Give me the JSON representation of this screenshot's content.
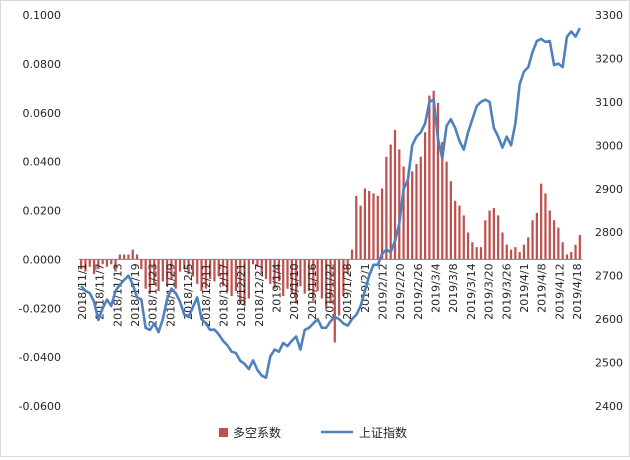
{
  "chart_data": {
    "type": "bar+line",
    "colors": {
      "bar": "#C0504D",
      "line": "#4F81BD",
      "zero": "#7f7f7f",
      "axis": "#bfbfbf"
    },
    "y_left": {
      "lim": [
        -0.06,
        0.1
      ],
      "ticks": [
        -0.06,
        -0.04,
        -0.02,
        0.0,
        0.02,
        0.04,
        0.06,
        0.08,
        0.1
      ],
      "tick_labels": [
        "-0.0600",
        "-0.0400",
        "-0.0200",
        "0.0000",
        "0.0200",
        "0.0400",
        "0.0600",
        "0.0800",
        "0.1000"
      ]
    },
    "y_right": {
      "lim": [
        2400,
        3300
      ],
      "ticks": [
        2400,
        2500,
        2600,
        2700,
        2800,
        2900,
        3000,
        3100,
        3200,
        3300
      ],
      "tick_labels": [
        "2400",
        "2500",
        "2600",
        "2700",
        "2800",
        "2900",
        "3000",
        "3100",
        "3200",
        "3300"
      ]
    },
    "x_tick_labels": [
      "2018/11/1",
      "2018/11/7",
      "2018/11/13",
      "2018/11/19",
      "2018/11/23",
      "2018/11/29",
      "2018/12/5",
      "2018/12/11",
      "2018/12/17",
      "2018/12/21",
      "2018/12/27",
      "2019/1/4",
      "2019/1/10",
      "2019/1/16",
      "2019/1/22",
      "2019/1/28",
      "2019/2/1",
      "2019/2/12",
      "2019/2/20",
      "2019/2/26",
      "2019/3/4",
      "2019/3/8",
      "2019/3/14",
      "2019/3/20",
      "2019/3/26",
      "2019/4/1",
      "2019/4/8",
      "2019/4/12",
      "2019/4/18"
    ],
    "series": [
      {
        "name": "多空系数",
        "kind": "bar",
        "axis": "left",
        "values": [
          -0.004,
          -0.005,
          -0.003,
          -0.006,
          -0.004,
          -0.002,
          -0.003,
          -0.002,
          -0.005,
          0.002,
          0.002,
          0.002,
          0.004,
          0.002,
          -0.004,
          -0.012,
          -0.014,
          -0.01,
          -0.013,
          -0.009,
          -0.011,
          -0.008,
          -0.012,
          -0.005,
          -0.004,
          -0.006,
          -0.007,
          -0.01,
          -0.013,
          -0.012,
          -0.008,
          -0.009,
          -0.007,
          -0.011,
          -0.013,
          -0.015,
          -0.013,
          -0.018,
          -0.019,
          -0.016,
          -0.002,
          -0.003,
          -0.006,
          -0.008,
          -0.01,
          -0.012,
          -0.009,
          -0.015,
          -0.012,
          -0.014,
          -0.018,
          -0.011,
          -0.014,
          -0.013,
          -0.017,
          -0.013,
          -0.016,
          -0.02,
          -0.018,
          -0.034,
          -0.023,
          -0.015,
          -0.006,
          0.004,
          0.026,
          0.022,
          0.029,
          0.028,
          0.027,
          0.026,
          0.029,
          0.042,
          0.047,
          0.053,
          0.045,
          0.038,
          0.032,
          0.036,
          0.039,
          0.042,
          0.052,
          0.067,
          0.069,
          0.064,
          0.048,
          0.04,
          0.032,
          0.024,
          0.022,
          0.018,
          0.011,
          0.007,
          0.005,
          0.005,
          0.016,
          0.02,
          0.021,
          0.018,
          0.011,
          0.006,
          0.004,
          0.005,
          0.003,
          0.006,
          0.009,
          0.016,
          0.019,
          0.031,
          0.027,
          0.02,
          0.016,
          0.013,
          0.007,
          0.002,
          0.003,
          0.006,
          0.01
        ]
      },
      {
        "name": "上证指数",
        "kind": "line",
        "axis": "right",
        "values": [
          2676,
          2665,
          2660,
          2640,
          2598,
          2625,
          2645,
          2630,
          2665,
          2679,
          2690,
          2700,
          2680,
          2650,
          2645,
          2580,
          2575,
          2590,
          2570,
          2600,
          2646,
          2670,
          2660,
          2640,
          2610,
          2605,
          2628,
          2650,
          2600,
          2590,
          2575,
          2576,
          2565,
          2550,
          2540,
          2525,
          2522,
          2504,
          2497,
          2485,
          2505,
          2483,
          2470,
          2465,
          2514,
          2530,
          2525,
          2545,
          2538,
          2550,
          2560,
          2530,
          2575,
          2580,
          2590,
          2600,
          2580,
          2580,
          2595,
          2605,
          2600,
          2590,
          2585,
          2600,
          2610,
          2630,
          2665,
          2700,
          2725,
          2725,
          2750,
          2760,
          2754,
          2780,
          2820,
          2900,
          2920,
          3000,
          3020,
          3030,
          3050,
          3100,
          3105,
          3015,
          2970,
          3045,
          3060,
          3040,
          3010,
          2990,
          3030,
          3060,
          3090,
          3100,
          3105,
          3100,
          3040,
          3020,
          2995,
          3020,
          3000,
          3050,
          3140,
          3170,
          3180,
          3215,
          3240,
          3245,
          3238,
          3240,
          3185,
          3188,
          3180,
          3250,
          3262,
          3250,
          3270
        ]
      }
    ],
    "legend": {
      "position": "bottom-center",
      "items": [
        {
          "label": "多空系数",
          "symbol": "square"
        },
        {
          "label": "上证指数",
          "symbol": "line"
        }
      ]
    }
  }
}
